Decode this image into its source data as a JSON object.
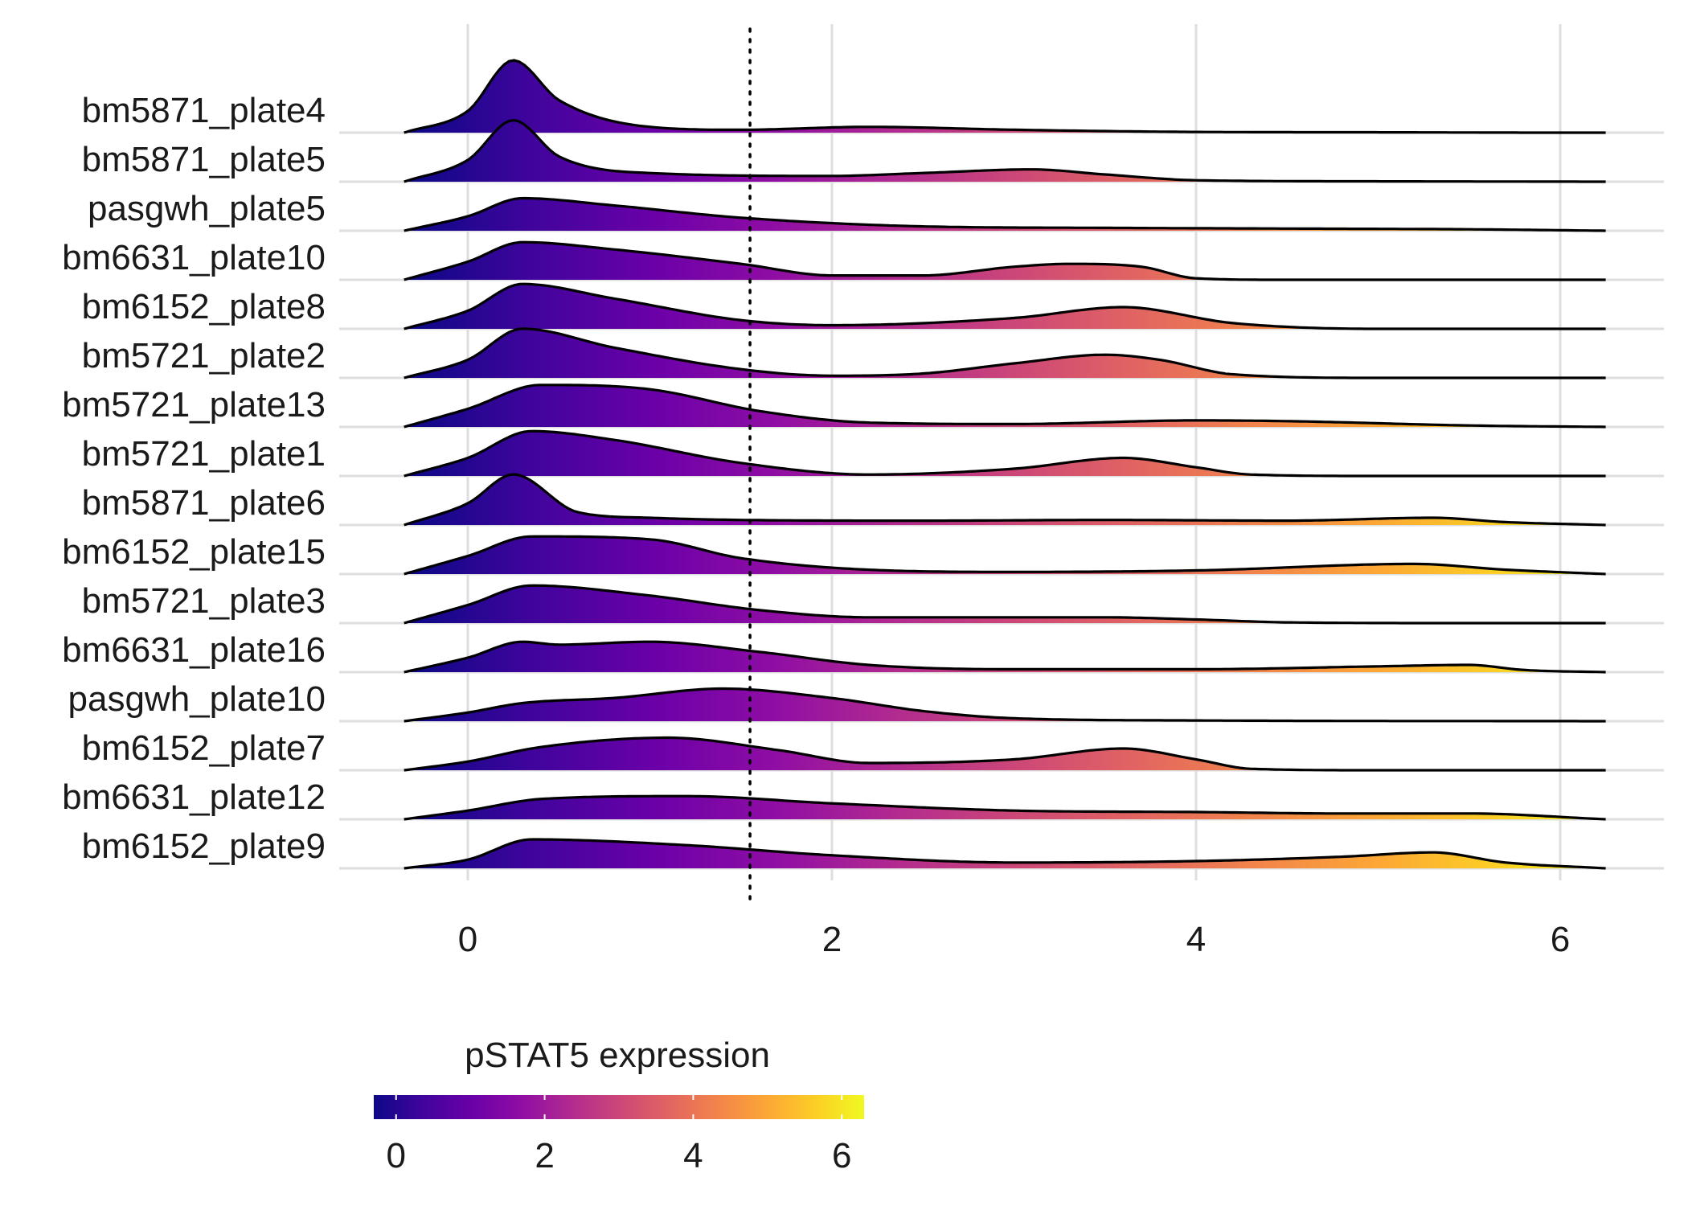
{
  "chart_data": {
    "type": "ridgeline",
    "title": "",
    "xlabel": "",
    "ylabel": "",
    "xlim": [
      -0.65,
      6.6
    ],
    "x_ticks": [
      0,
      2,
      4,
      6
    ],
    "x_tick_labels": [
      "0",
      "2",
      "4",
      "6"
    ],
    "grid": true,
    "threshold_x": 1.55,
    "categories": [
      "bm5871_plate4",
      "bm5871_plate5",
      "pasgwh_plate5",
      "bm6631_plate10",
      "bm6152_plate8",
      "bm5721_plate2",
      "bm5721_plate13",
      "bm5721_plate1",
      "bm5871_plate6",
      "bm6152_plate15",
      "bm5721_plate3",
      "bm6631_plate16",
      "pasgwh_plate10",
      "bm6152_plate7",
      "bm6631_plate12",
      "bm6152_plate9"
    ],
    "legend": {
      "title": "pSTAT5 expression",
      "position": "bottom",
      "range": [
        -0.3,
        6.3
      ],
      "ticks": [
        0,
        2,
        4,
        6
      ],
      "tick_labels": [
        "0",
        "2",
        "4",
        "6"
      ],
      "colormap": "plasma",
      "colors": [
        "#0d0887",
        "#41049d",
        "#6a00a8",
        "#8f0da4",
        "#b12a90",
        "#cc4778",
        "#e16462",
        "#f2844b",
        "#fca636",
        "#fcce25",
        "#f0f921"
      ]
    },
    "series": [
      {
        "x": [
          -0.35,
          0,
          0.25,
          0.5,
          1,
          1.5,
          2.2,
          3,
          4,
          5,
          6,
          6.25
        ],
        "density": [
          0,
          0.3,
          1.0,
          0.45,
          0.08,
          0.04,
          0.08,
          0.04,
          0.01,
          0.005,
          0,
          0
        ]
      },
      {
        "x": [
          -0.35,
          0,
          0.25,
          0.5,
          1,
          2,
          2.5,
          3.1,
          3.5,
          4,
          5,
          6.25
        ],
        "density": [
          0,
          0.3,
          0.85,
          0.35,
          0.12,
          0.08,
          0.12,
          0.17,
          0.1,
          0.02,
          0.005,
          0
        ]
      },
      {
        "x": [
          -0.35,
          0,
          0.3,
          0.8,
          1.5,
          2.5,
          3.5,
          4.5,
          5.5,
          6.25
        ],
        "density": [
          0,
          0.2,
          0.45,
          0.35,
          0.18,
          0.06,
          0.04,
          0.03,
          0.02,
          0
        ]
      },
      {
        "x": [
          -0.35,
          0,
          0.3,
          0.8,
          1.5,
          2,
          2.5,
          3,
          3.3,
          3.7,
          4,
          4.5,
          6.25
        ],
        "density": [
          0,
          0.25,
          0.52,
          0.42,
          0.22,
          0.06,
          0.06,
          0.18,
          0.22,
          0.18,
          0.02,
          0,
          0
        ]
      },
      {
        "x": [
          -0.35,
          0,
          0.3,
          0.8,
          1.5,
          2,
          3,
          3.6,
          4.2,
          5,
          6.25
        ],
        "density": [
          0,
          0.25,
          0.62,
          0.42,
          0.12,
          0.05,
          0.15,
          0.3,
          0.08,
          0,
          0
        ]
      },
      {
        "x": [
          -0.35,
          0,
          0.3,
          0.8,
          1.5,
          2,
          2.5,
          3,
          3.5,
          3.8,
          4.2,
          5,
          6.25
        ],
        "density": [
          0,
          0.25,
          0.68,
          0.42,
          0.12,
          0.03,
          0.06,
          0.2,
          0.32,
          0.25,
          0.05,
          0,
          0
        ]
      },
      {
        "x": [
          -0.35,
          0,
          0.4,
          1,
          1.6,
          2.2,
          3,
          4,
          4.5,
          5.5,
          6.25
        ],
        "density": [
          0,
          0.25,
          0.58,
          0.52,
          0.22,
          0.06,
          0.04,
          0.09,
          0.08,
          0.02,
          0
        ]
      },
      {
        "x": [
          -0.35,
          0,
          0.35,
          0.8,
          1.5,
          2.2,
          3,
          3.6,
          4,
          4.3,
          5,
          6.25
        ],
        "density": [
          0,
          0.25,
          0.62,
          0.5,
          0.18,
          0.02,
          0.1,
          0.25,
          0.12,
          0.02,
          0,
          0
        ]
      },
      {
        "x": [
          -0.35,
          0,
          0.25,
          0.6,
          1,
          1.5,
          2.5,
          3.5,
          4.5,
          5.3,
          5.7,
          6.25
        ],
        "density": [
          0,
          0.3,
          0.7,
          0.18,
          0.1,
          0.07,
          0.06,
          0.07,
          0.06,
          0.1,
          0.04,
          0
        ]
      },
      {
        "x": [
          -0.35,
          0,
          0.35,
          1,
          1.5,
          2.2,
          3,
          4,
          5.2,
          5.7,
          6.25
        ],
        "density": [
          0,
          0.25,
          0.52,
          0.48,
          0.22,
          0.06,
          0.03,
          0.05,
          0.14,
          0.06,
          0
        ]
      },
      {
        "x": [
          -0.35,
          0,
          0.35,
          1,
          1.6,
          2.2,
          3,
          3.5,
          4,
          4.5,
          5.5,
          6.25
        ],
        "density": [
          0,
          0.25,
          0.52,
          0.38,
          0.18,
          0.08,
          0.08,
          0.08,
          0.05,
          0.01,
          0,
          0
        ]
      },
      {
        "x": [
          -0.35,
          0,
          0.3,
          0.5,
          1,
          1.6,
          2.2,
          3,
          4,
          5,
          5.5,
          5.8,
          6.25
        ],
        "density": [
          0,
          0.2,
          0.42,
          0.38,
          0.42,
          0.28,
          0.1,
          0.04,
          0.04,
          0.08,
          0.1,
          0.03,
          0
        ]
      },
      {
        "x": [
          -0.35,
          0,
          0.3,
          0.8,
          1.4,
          2,
          2.5,
          3,
          4,
          6.25
        ],
        "density": [
          0,
          0.12,
          0.25,
          0.32,
          0.45,
          0.32,
          0.14,
          0.04,
          0.01,
          0
        ]
      },
      {
        "x": [
          -0.35,
          0,
          0.4,
          1.1,
          1.7,
          2.2,
          3,
          3.6,
          4,
          4.3,
          5,
          6.25
        ],
        "density": [
          0,
          0.12,
          0.32,
          0.45,
          0.28,
          0.1,
          0.15,
          0.3,
          0.15,
          0.02,
          0,
          0
        ]
      },
      {
        "x": [
          -0.35,
          0,
          0.4,
          1.2,
          2,
          3,
          4,
          4.8,
          5.5,
          6.25
        ],
        "density": [
          0,
          0.12,
          0.28,
          0.32,
          0.22,
          0.12,
          0.1,
          0.08,
          0.08,
          0
        ]
      },
      {
        "x": [
          -0.35,
          0,
          0.35,
          1.2,
          2,
          3,
          4,
          4.8,
          5.3,
          5.7,
          6.25
        ],
        "density": [
          0,
          0.12,
          0.4,
          0.32,
          0.18,
          0.08,
          0.1,
          0.16,
          0.22,
          0.08,
          0
        ]
      }
    ]
  }
}
